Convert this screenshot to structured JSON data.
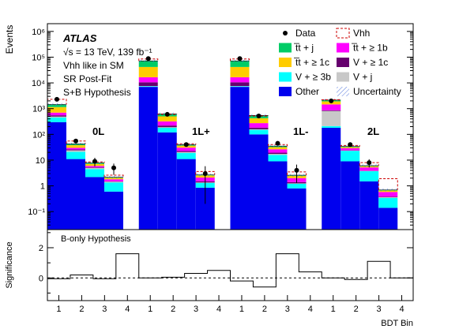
{
  "chart_data": {
    "type": "bar",
    "stacked": true,
    "y_scale": "log",
    "ylim": [
      0.02,
      2000000
    ],
    "ylabel": "Events",
    "xlabel": "BDT Bin",
    "grid": false,
    "legend_position": "top-right",
    "channels": [
      "0L",
      "1L+",
      "1L-",
      "2L"
    ],
    "categories": [
      "1",
      "2",
      "3",
      "4",
      "1",
      "2",
      "3",
      "4",
      "1",
      "2",
      "3",
      "4",
      "1",
      "2",
      "3",
      "4"
    ],
    "yticks": [
      {
        "value": 0.1,
        "label": "10⁻¹"
      },
      {
        "value": 1,
        "label": "1"
      },
      {
        "value": 10,
        "label": "10"
      },
      {
        "value": 100,
        "label": "10²"
      },
      {
        "value": 1000,
        "label": "10³"
      },
      {
        "value": 10000,
        "label": "10⁴"
      },
      {
        "value": 100000,
        "label": "10⁵"
      },
      {
        "value": 1000000,
        "label": "10⁶"
      }
    ],
    "series": [
      {
        "name": "Other",
        "color": "#0000ee",
        "values": [
          300,
          11,
          2.2,
          0.6,
          7000,
          120,
          11,
          0.85,
          7000,
          100,
          9,
          0.8,
          180,
          9,
          1.5,
          0.14
        ]
      },
      {
        "name": "V + ≥ 3b",
        "color": "#00ffff",
        "values": [
          150,
          10,
          2.3,
          0.75,
          400,
          60,
          8,
          0.45,
          400,
          50,
          7,
          0.4,
          30,
          14,
          2.2,
          0.2
        ]
      },
      {
        "name": "V + j",
        "color": "#c8c8c8",
        "values": [
          40,
          3,
          0.5,
          0.1,
          150,
          10,
          1.5,
          0.05,
          150,
          8,
          1.4,
          0.05,
          600,
          0.5,
          0.1,
          0.02
        ]
      },
      {
        "name": "V + ≥ 1c",
        "color": "#66006e",
        "values": [
          60,
          2,
          0.25,
          0.05,
          3000,
          30,
          2,
          0.15,
          3000,
          25,
          2,
          0.15,
          50,
          0.5,
          0.1,
          0.02
        ]
      },
      {
        "name": "t̅t + ≥ 1b",
        "color": "#ff00ff",
        "values": [
          150,
          4,
          0.7,
          0.3,
          6000,
          100,
          8,
          0.6,
          6000,
          90,
          7,
          0.6,
          600,
          5,
          1.3,
          0.2
        ]
      },
      {
        "name": "t̅t + ≥ 1c",
        "color": "#ffcc00",
        "values": [
          450,
          8,
          1.2,
          0.25,
          25000,
          180,
          6,
          0.45,
          25000,
          150,
          5.5,
          0.45,
          450,
          3,
          0.6,
          0.08
        ]
      },
      {
        "name": "t̅t + j",
        "color": "#00cc66",
        "values": [
          300,
          5,
          0.7,
          0.12,
          30000,
          130,
          3,
          0.15,
          30000,
          120,
          3,
          0.15,
          250,
          2,
          0.3,
          0.04
        ]
      }
    ],
    "vhh_totals": [
      2300,
      55,
      8.5,
      2.6,
      85000,
      600,
      43,
      3.6,
      85000,
      520,
      40,
      3.5,
      2200,
      37,
      8,
      1.9
    ],
    "data": [
      2300,
      55,
      9,
      5,
      88000,
      600,
      40,
      3,
      88000,
      520,
      45,
      4,
      2000,
      40,
      8,
      0
    ],
    "data_errors_down": [
      50,
      7.3,
      3.3,
      2.3,
      300,
      24,
      6.3,
      2.8,
      300,
      23,
      6.7,
      2.7,
      45,
      6.3,
      2.8,
      0
    ],
    "data_errors_up": [
      50,
      7.3,
      3.3,
      2.3,
      300,
      24,
      6.3,
      2.8,
      300,
      23,
      6.7,
      2.7,
      45,
      6.3,
      2.8,
      0
    ],
    "significance": {
      "title": "B-only Hypothesis",
      "ylabel": "Significance",
      "ylim": [
        -1.5,
        3.2
      ],
      "yticks": [
        {
          "value": 0,
          "label": "0"
        },
        {
          "value": 2,
          "label": "2"
        }
      ],
      "values": [
        -0.05,
        0.2,
        -0.05,
        1.6,
        0.0,
        0.05,
        0.3,
        0.5,
        -0.2,
        -0.6,
        1.6,
        0.4,
        0.0,
        -0.1,
        1.1,
        0.0
      ]
    },
    "annotations": {
      "experiment": "ATLAS",
      "energy": "√s = 13 TeV, 139 fb⁻¹",
      "model": "Vhh like in SM",
      "region": "SR Post-Fit",
      "hypothesis": "S+B Hypothesis"
    },
    "legend": [
      {
        "label": "Data",
        "symbol": "marker",
        "color": "#000000"
      },
      {
        "label": "Vhh",
        "symbol": "dashed-box",
        "color": "#cc0000"
      },
      {
        "label": "t̅t + j",
        "symbol": "fill",
        "color": "#00cc66"
      },
      {
        "label": "t̅t + ≥ 1b",
        "symbol": "fill",
        "color": "#ff00ff"
      },
      {
        "label": "t̅t + ≥ 1c",
        "symbol": "fill",
        "color": "#ffcc00"
      },
      {
        "label": "V + ≥ 1c",
        "symbol": "fill",
        "color": "#66006e"
      },
      {
        "label": "V + ≥ 3b",
        "symbol": "fill",
        "color": "#00ffff"
      },
      {
        "label": "V + j",
        "symbol": "fill",
        "color": "#c8c8c8"
      },
      {
        "label": "Other",
        "symbol": "fill",
        "color": "#0000ee"
      },
      {
        "label": "Uncertainty",
        "symbol": "hatch",
        "color": "#5577dd"
      }
    ]
  }
}
